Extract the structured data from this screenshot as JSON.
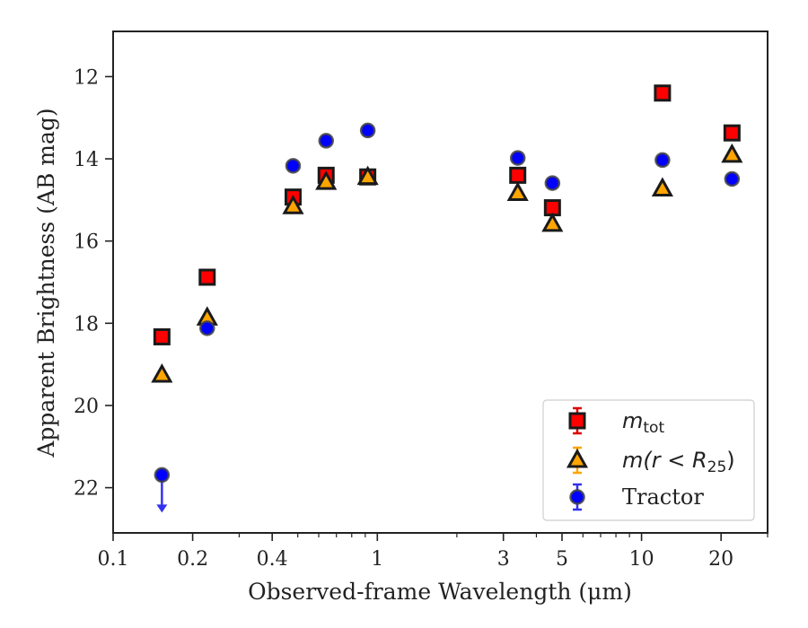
{
  "chart_data": {
    "type": "scatter",
    "xlabel": "Observed-frame Wavelength (μm)",
    "ylabel": "Apparent Brightness (AB mag)",
    "x_scale": "log",
    "y_inverted": true,
    "xlim": [
      0.1,
      30
    ],
    "ylim": [
      23.1,
      10.9
    ],
    "x_ticks": [
      {
        "value": 0.1,
        "label": "0.1"
      },
      {
        "value": 0.2,
        "label": "0.2"
      },
      {
        "value": 0.4,
        "label": "0.4"
      },
      {
        "value": 1,
        "label": "1"
      },
      {
        "value": 3,
        "label": "3"
      },
      {
        "value": 5,
        "label": "5"
      },
      {
        "value": 10,
        "label": "10"
      },
      {
        "value": 20,
        "label": "20"
      }
    ],
    "y_ticks": [
      {
        "value": 12,
        "label": "12"
      },
      {
        "value": 14,
        "label": "14"
      },
      {
        "value": 16,
        "label": "16"
      },
      {
        "value": 18,
        "label": "18"
      },
      {
        "value": 20,
        "label": "20"
      },
      {
        "value": 22,
        "label": "22"
      }
    ],
    "grid": false,
    "legend_position": "bottom-right",
    "series": [
      {
        "name": "m_tot",
        "label_base": "m",
        "label_sub": "tot",
        "marker": "square",
        "color": "#ff0000",
        "edge": "#1a1a1a",
        "points": [
          {
            "x": 0.153,
            "y": 18.33
          },
          {
            "x": 0.227,
            "y": 16.88
          },
          {
            "x": 0.48,
            "y": 14.93
          },
          {
            "x": 0.64,
            "y": 14.4
          },
          {
            "x": 0.92,
            "y": 14.44
          },
          {
            "x": 3.4,
            "y": 14.4
          },
          {
            "x": 4.6,
            "y": 15.19
          },
          {
            "x": 12.0,
            "y": 12.4
          },
          {
            "x": 22.0,
            "y": 13.37
          }
        ]
      },
      {
        "name": "m(r < R_25)",
        "label_base": "m(r < R",
        "label_sub": "25",
        "label_tail": ")",
        "marker": "triangle",
        "color": "#ffa500",
        "edge": "#1a1a1a",
        "points": [
          {
            "x": 0.153,
            "y": 19.26
          },
          {
            "x": 0.227,
            "y": 17.87
          },
          {
            "x": 0.48,
            "y": 15.16
          },
          {
            "x": 0.64,
            "y": 14.57
          },
          {
            "x": 0.92,
            "y": 14.45
          },
          {
            "x": 3.4,
            "y": 14.84
          },
          {
            "x": 4.6,
            "y": 15.59
          },
          {
            "x": 12.0,
            "y": 14.73
          },
          {
            "x": 22.0,
            "y": 13.91
          }
        ]
      },
      {
        "name": "Tractor",
        "marker": "circle",
        "color": "#0000ff",
        "edge": "#444444",
        "upper_limit_index": 0,
        "points": [
          {
            "x": 0.153,
            "y": 21.69
          },
          {
            "x": 0.227,
            "y": 18.12
          },
          {
            "x": 0.48,
            "y": 14.17
          },
          {
            "x": 0.64,
            "y": 13.56
          },
          {
            "x": 0.92,
            "y": 13.31
          },
          {
            "x": 3.4,
            "y": 13.98
          },
          {
            "x": 4.6,
            "y": 14.59
          },
          {
            "x": 12.0,
            "y": 14.03
          },
          {
            "x": 22.0,
            "y": 14.49
          }
        ]
      }
    ]
  }
}
